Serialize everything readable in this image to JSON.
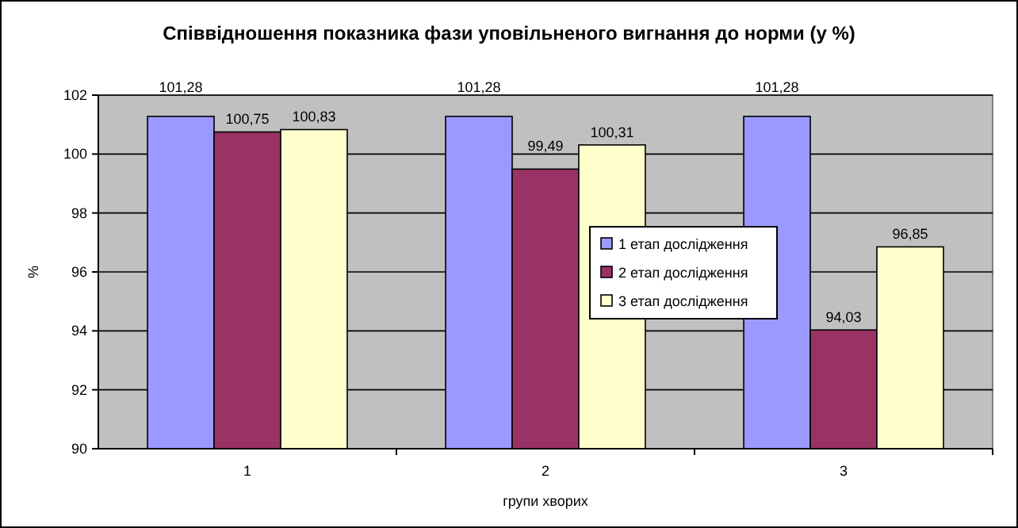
{
  "chart_data": {
    "type": "bar",
    "title": "Співвідношення показника фази уповільненого вигнання до норми (у %)",
    "xlabel": "групи хворих",
    "ylabel": "%",
    "categories": [
      "1",
      "2",
      "3"
    ],
    "series": [
      {
        "name": "1 етап дослідження",
        "color": "#9999ff",
        "values": [
          101.28,
          101.28,
          101.28
        ],
        "value_labels": [
          "101,28",
          "101,28",
          "101,28"
        ]
      },
      {
        "name": "2 етап дослідження",
        "color": "#993366",
        "values": [
          100.75,
          99.49,
          94.03
        ],
        "value_labels": [
          "100,75",
          "99,49",
          "94,03"
        ]
      },
      {
        "name": "3 етап дослідження",
        "color": "#ffffcc",
        "values": [
          100.83,
          100.31,
          96.85
        ],
        "value_labels": [
          "100,83",
          "100,31",
          "96,85"
        ]
      }
    ],
    "ylim": [
      90,
      102
    ],
    "yticks": [
      90,
      92,
      94,
      96,
      98,
      100,
      102
    ],
    "grid": "y",
    "legend": "right"
  }
}
